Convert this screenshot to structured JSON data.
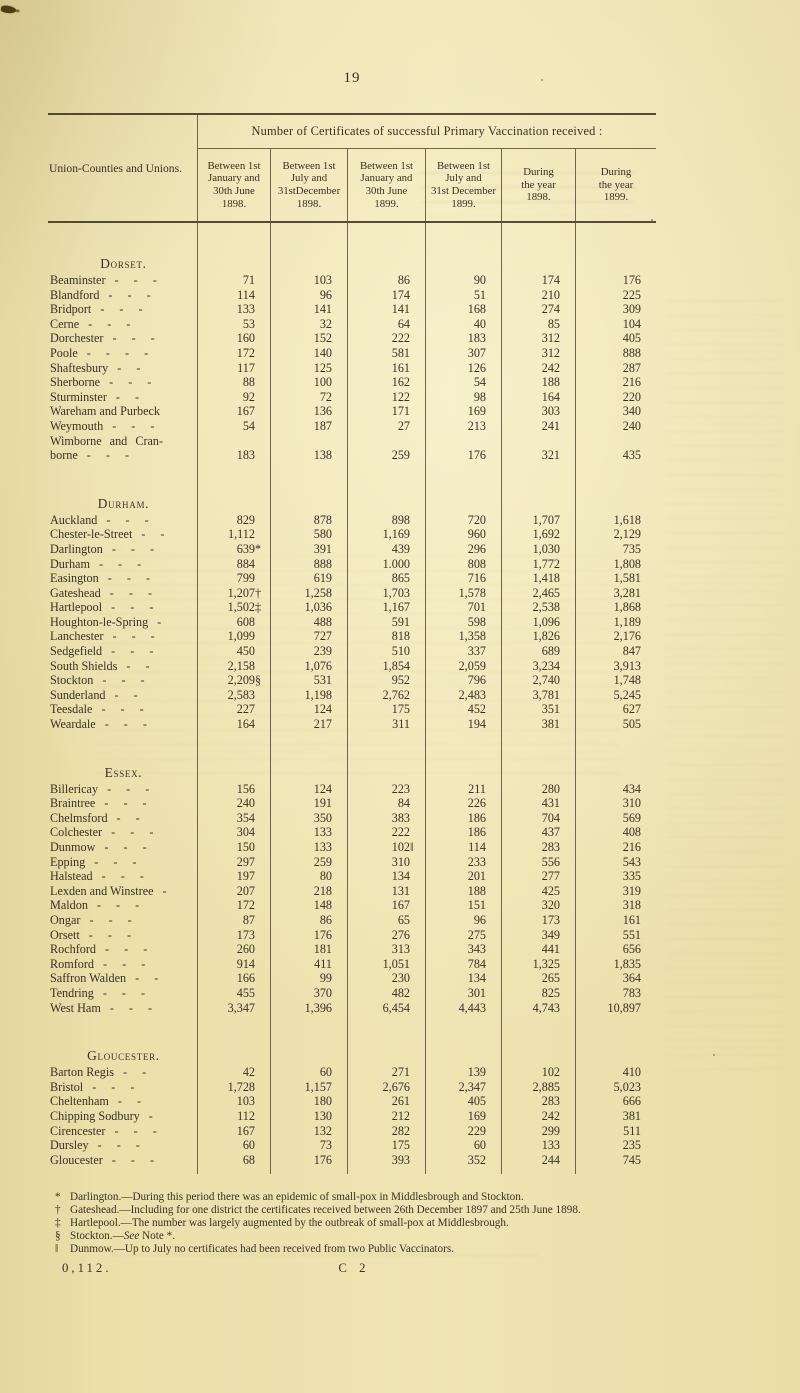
{
  "palette": {
    "paper": "#ebdfaa",
    "ink": "#3a3126"
  },
  "page": {
    "number": "19",
    "footer_left": "0,112.",
    "footer_center": "C 2"
  },
  "table": {
    "stub_header": "Union-Counties and Unions.",
    "span_header": "Number of Certificates of successful Primary Vaccination received :",
    "columns": [
      "Between 1st\nJanuary and\n30th June\n1898.",
      "Between 1st\nJuly and\n31stDecember\n1898.",
      "Between 1st\nJanuary and\n30th June\n1899.",
      "Between 1st\nJuly and\n31st December\n1899.",
      "During\nthe year\n1898.",
      "During\nthe year\n1899."
    ],
    "sections": [
      {
        "heading": "Dorset.",
        "rows": [
          {
            "name": "Beaminster",
            "leader": "- - -",
            "values": [
              "71",
              "103",
              "86",
              "90",
              "174",
              "176"
            ]
          },
          {
            "name": "Blandford",
            "leader": "- - -",
            "values": [
              "114",
              "96",
              "174",
              "51",
              "210",
              "225"
            ]
          },
          {
            "name": "Bridport",
            "leader": "- - -",
            "values": [
              "133",
              "141",
              "141",
              "168",
              "274",
              "309"
            ]
          },
          {
            "name": "Cerne",
            "leader": "- - -",
            "values": [
              "53",
              "32",
              "64",
              "40",
              "85",
              "104"
            ]
          },
          {
            "name": "Dorchester",
            "leader": "- - -",
            "values": [
              "160",
              "152",
              "222",
              "183",
              "312",
              "405"
            ]
          },
          {
            "name": "Poole",
            "leader": "- - - -",
            "values": [
              "172",
              "140",
              "581",
              "307",
              "312",
              "888"
            ]
          },
          {
            "name": "Shaftesbury",
            "leader": "- -",
            "values": [
              "117",
              "125",
              "161",
              "126",
              "242",
              "287"
            ]
          },
          {
            "name": "Sherborne",
            "leader": "- - -",
            "values": [
              "88",
              "100",
              "162",
              "54",
              "188",
              "216"
            ]
          },
          {
            "name": "Sturminster",
            "leader": "- -",
            "values": [
              "92",
              "72",
              "122",
              "98",
              "164",
              "220"
            ]
          },
          {
            "name": "Wareham and Purbeck",
            "leader": "",
            "values": [
              "167",
              "136",
              "171",
              "169",
              "303",
              "340"
            ]
          },
          {
            "name": "Weymouth",
            "leader": "- - -",
            "values": [
              "54",
              "187",
              "27",
              "213",
              "241",
              "240"
            ]
          },
          {
            "name": "Wimborne and Cran-",
            "name2": "borne",
            "leader": "- - -",
            "values": [
              "183",
              "138",
              "259",
              "176",
              "321",
              "435"
            ]
          }
        ]
      },
      {
        "heading": "Durham.",
        "rows": [
          {
            "name": "Auckland",
            "leader": "- - -",
            "values": [
              "829",
              "878",
              "898",
              "720",
              "1,707",
              "1,618"
            ]
          },
          {
            "name": "Chester-le-Street",
            "leader": "- -",
            "values": [
              "1,112",
              "580",
              "1,169",
              "960",
              "1,692",
              "2,129"
            ]
          },
          {
            "name": "Darlington",
            "leader": "- - -",
            "values": [
              "639*",
              "391",
              "439",
              "296",
              "1,030",
              "735"
            ]
          },
          {
            "name": "Durham",
            "leader": "- - -",
            "values": [
              "884",
              "888",
              "1.000",
              "808",
              "1,772",
              "1,808"
            ]
          },
          {
            "name": "Easington",
            "leader": "- - -",
            "values": [
              "799",
              "619",
              "865",
              "716",
              "1,418",
              "1,581"
            ]
          },
          {
            "name": "Gateshead",
            "leader": "- - -",
            "values": [
              "1,207†",
              "1,258",
              "1,703",
              "1,578",
              "2,465",
              "3,281"
            ]
          },
          {
            "name": "Hartlepool",
            "leader": "- - -",
            "values": [
              "1,502‡",
              "1,036",
              "1,167",
              "701",
              "2,538",
              "1,868"
            ]
          },
          {
            "name": "Houghton-le-Spring",
            "leader": "-",
            "values": [
              "608",
              "488",
              "591",
              "598",
              "1,096",
              "1,189"
            ]
          },
          {
            "name": "Lanchester",
            "leader": "- - -",
            "values": [
              "1,099",
              "727",
              "818",
              "1,358",
              "1,826",
              "2,176"
            ]
          },
          {
            "name": "Sedgefield",
            "leader": "- - -",
            "values": [
              "450",
              "239",
              "510",
              "337",
              "689",
              "847"
            ]
          },
          {
            "name": "South Shields",
            "leader": "- -",
            "values": [
              "2,158",
              "1,076",
              "1,854",
              "2,059",
              "3,234",
              "3,913"
            ]
          },
          {
            "name": "Stockton",
            "leader": "- - -",
            "values": [
              "2,209§",
              "531",
              "952",
              "796",
              "2,740",
              "1,748"
            ]
          },
          {
            "name": "Sunderland",
            "leader": "- -",
            "values": [
              "2,583",
              "1,198",
              "2,762",
              "2,483",
              "3,781",
              "5,245"
            ]
          },
          {
            "name": "Teesdale",
            "leader": "- - -",
            "values": [
              "227",
              "124",
              "175",
              "452",
              "351",
              "627"
            ]
          },
          {
            "name": "Weardale",
            "leader": "- - -",
            "values": [
              "164",
              "217",
              "311",
              "194",
              "381",
              "505"
            ]
          }
        ]
      },
      {
        "heading": "Essex.",
        "rows": [
          {
            "name": "Billericay",
            "leader": "- - -",
            "values": [
              "156",
              "124",
              "223",
              "211",
              "280",
              "434"
            ]
          },
          {
            "name": "Braintree",
            "leader": "- - -",
            "values": [
              "240",
              "191",
              "84",
              "226",
              "431",
              "310"
            ]
          },
          {
            "name": "Chelmsford",
            "leader": "- -",
            "values": [
              "354",
              "350",
              "383",
              "186",
              "704",
              "569"
            ]
          },
          {
            "name": "Colchester",
            "leader": "- - -",
            "values": [
              "304",
              "133",
              "222",
              "186",
              "437",
              "408"
            ]
          },
          {
            "name": "Dunmow",
            "leader": "- - -",
            "values": [
              "150",
              "133",
              "102‖",
              "114",
              "283",
              "216"
            ]
          },
          {
            "name": "Epping",
            "leader": "- - -",
            "values": [
              "297",
              "259",
              "310",
              "233",
              "556",
              "543"
            ]
          },
          {
            "name": "Halstead",
            "leader": "- - -",
            "values": [
              "197",
              "80",
              "134",
              "201",
              "277",
              "335"
            ]
          },
          {
            "name": "Lexden and Winstree",
            "leader": "-",
            "values": [
              "207",
              "218",
              "131",
              "188",
              "425",
              "319"
            ]
          },
          {
            "name": "Maldon",
            "leader": "- - -",
            "values": [
              "172",
              "148",
              "167",
              "151",
              "320",
              "318"
            ]
          },
          {
            "name": "Ongar",
            "leader": "- - -",
            "values": [
              "87",
              "86",
              "65",
              "96",
              "173",
              "161"
            ]
          },
          {
            "name": "Orsett",
            "leader": "- - -",
            "values": [
              "173",
              "176",
              "276",
              "275",
              "349",
              "551"
            ]
          },
          {
            "name": "Rochford",
            "leader": "- - -",
            "values": [
              "260",
              "181",
              "313",
              "343",
              "441",
              "656"
            ]
          },
          {
            "name": "Romford",
            "leader": "- - -",
            "values": [
              "914",
              "411",
              "1,051",
              "784",
              "1,325",
              "1,835"
            ]
          },
          {
            "name": "Saffron Walden",
            "leader": "- -",
            "values": [
              "166",
              "99",
              "230",
              "134",
              "265",
              "364"
            ]
          },
          {
            "name": "Tendring",
            "leader": "- - -",
            "values": [
              "455",
              "370",
              "482",
              "301",
              "825",
              "783"
            ]
          },
          {
            "name": "West Ham",
            "leader": "- - -",
            "values": [
              "3,347",
              "1,396",
              "6,454",
              "4,443",
              "4,743",
              "10,897"
            ]
          }
        ]
      },
      {
        "heading": "Gloucester.",
        "rows": [
          {
            "name": "Barton Regis",
            "leader": "- -",
            "values": [
              "42",
              "60",
              "271",
              "139",
              "102",
              "410"
            ]
          },
          {
            "name": "Bristol",
            "leader": "- - -",
            "values": [
              "1,728",
              "1,157",
              "2,676",
              "2,347",
              "2,885",
              "5,023"
            ]
          },
          {
            "name": "Cheltenham",
            "leader": "- -",
            "values": [
              "103",
              "180",
              "261",
              "405",
              "283",
              "666"
            ]
          },
          {
            "name": "Chipping Sodbury",
            "leader": "-",
            "values": [
              "112",
              "130",
              "212",
              "169",
              "242",
              "381"
            ]
          },
          {
            "name": "Cirencester",
            "leader": "- - -",
            "values": [
              "167",
              "132",
              "282",
              "229",
              "299",
              "511"
            ]
          },
          {
            "name": "Dursley",
            "leader": "- - -",
            "values": [
              "60",
              "73",
              "175",
              "60",
              "133",
              "235"
            ]
          },
          {
            "name": "Gloucester",
            "leader": "- - -",
            "values": [
              "68",
              "176",
              "393",
              "352",
              "244",
              "745"
            ]
          }
        ]
      }
    ]
  },
  "footnotes": [
    {
      "marker": "*",
      "text": "Darlington.—During this period there was an epidemic of small-pox in Middlesbrough and Stockton."
    },
    {
      "marker": "†",
      "text": "Gateshead.—Including for one district the certificates received between 26th December 1897 and 25th June 1898."
    },
    {
      "marker": "‡",
      "text": "Hartlepool.—The number was largely augmented by the outbreak of small-pox at Middlesbrough."
    },
    {
      "marker": "§",
      "text": "Stockton.—See Note *.",
      "italic_word": "See"
    },
    {
      "marker": "‖",
      "text": "Dunmow.—Up to July no certificates had been received from two Public Vaccinators."
    }
  ]
}
